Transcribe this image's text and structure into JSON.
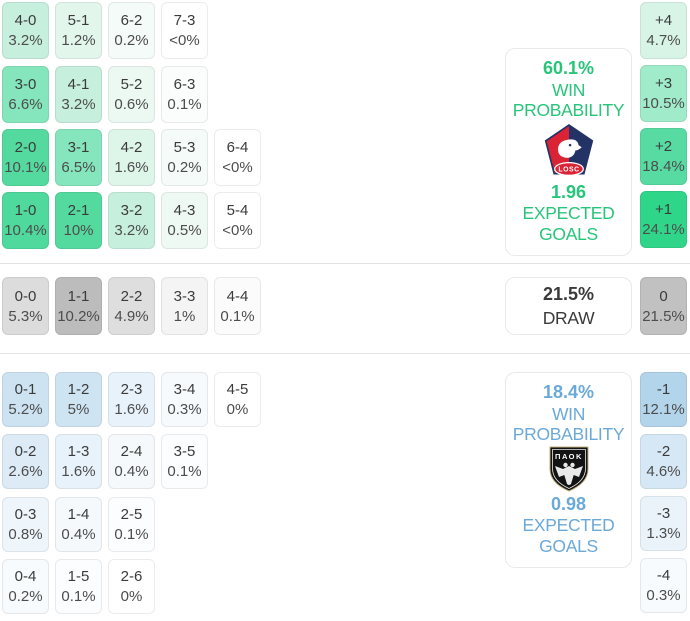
{
  "colors": {
    "home_accent": "#27c57a",
    "away_accent": "#6ba9d8",
    "draw_text": "#3a3a3a",
    "divider": "#e3e3e3",
    "home_strong_cell": "#2fd689",
    "draw_strong_cell": "#bcbcbc",
    "away_strong_cell": "#b2d5ec"
  },
  "home_grid": {
    "rows": [
      [
        {
          "t": "4-0",
          "b": "3.2%",
          "bg": "#c7efdd"
        },
        {
          "t": "5-1",
          "b": "1.2%",
          "bg": "#e2f6ec"
        },
        {
          "t": "6-2",
          "b": "0.2%",
          "bg": "#f5fbf8"
        },
        {
          "t": "7-3",
          "b": "<0%",
          "bg": "#ffffff"
        }
      ],
      [
        {
          "t": "3-0",
          "b": "6.6%",
          "bg": "#85e5bc"
        },
        {
          "t": "4-1",
          "b": "3.2%",
          "bg": "#c7efdd"
        },
        {
          "t": "5-2",
          "b": "0.6%",
          "bg": "#ecf9f3"
        },
        {
          "t": "6-3",
          "b": "0.1%",
          "bg": "#fafdfc"
        }
      ],
      [
        {
          "t": "2-0",
          "b": "10.1%",
          "bg": "#54da9f"
        },
        {
          "t": "3-1",
          "b": "6.5%",
          "bg": "#85e5bc"
        },
        {
          "t": "4-2",
          "b": "1.6%",
          "bg": "#def5ea"
        },
        {
          "t": "5-3",
          "b": "0.2%",
          "bg": "#f5fbf8"
        },
        {
          "t": "6-4",
          "b": "<0%",
          "bg": "#ffffff"
        }
      ],
      [
        {
          "t": "1-0",
          "b": "10.4%",
          "bg": "#4fd99d"
        },
        {
          "t": "2-1",
          "b": "10%",
          "bg": "#54da9f"
        },
        {
          "t": "3-2",
          "b": "3.2%",
          "bg": "#c7efdd"
        },
        {
          "t": "4-3",
          "b": "0.5%",
          "bg": "#eff9f4"
        },
        {
          "t": "5-4",
          "b": "<0%",
          "bg": "#ffffff"
        }
      ]
    ]
  },
  "draw_row": [
    {
      "t": "0-0",
      "b": "5.3%",
      "bg": "#dcdcdc"
    },
    {
      "t": "1-1",
      "b": "10.2%",
      "bg": "#bcbcbc"
    },
    {
      "t": "2-2",
      "b": "4.9%",
      "bg": "#dedede"
    },
    {
      "t": "3-3",
      "b": "1%",
      "bg": "#f4f4f4"
    },
    {
      "t": "4-4",
      "b": "0.1%",
      "bg": "#fbfbfb"
    }
  ],
  "away_grid": {
    "rows": [
      [
        {
          "t": "0-1",
          "b": "5.2%",
          "bg": "#cde3f2"
        },
        {
          "t": "1-2",
          "b": "5%",
          "bg": "#cfe4f2"
        },
        {
          "t": "2-3",
          "b": "1.6%",
          "bg": "#e8f2fa"
        },
        {
          "t": "3-4",
          "b": "0.3%",
          "bg": "#f7fafd"
        },
        {
          "t": "4-5",
          "b": "0%",
          "bg": "#ffffff"
        }
      ],
      [
        {
          "t": "0-2",
          "b": "2.6%",
          "bg": "#dcebf6"
        },
        {
          "t": "1-3",
          "b": "1.6%",
          "bg": "#e8f2fa"
        },
        {
          "t": "2-4",
          "b": "0.4%",
          "bg": "#f5f9fc"
        },
        {
          "t": "3-5",
          "b": "0.1%",
          "bg": "#fbfdfe"
        }
      ],
      [
        {
          "t": "0-3",
          "b": "0.8%",
          "bg": "#eff6fb"
        },
        {
          "t": "1-4",
          "b": "0.4%",
          "bg": "#f5f9fc"
        },
        {
          "t": "2-5",
          "b": "0.1%",
          "bg": "#fbfdfe"
        }
      ],
      [
        {
          "t": "0-4",
          "b": "0.2%",
          "bg": "#f8fbfd"
        },
        {
          "t": "1-5",
          "b": "0.1%",
          "bg": "#fbfdfe"
        },
        {
          "t": "2-6",
          "b": "0%",
          "bg": "#ffffff"
        }
      ]
    ]
  },
  "home_diffs": [
    {
      "t": "+4",
      "b": "4.7%",
      "bg": "#d8f4e7"
    },
    {
      "t": "+3",
      "b": "10.5%",
      "bg": "#9febca"
    },
    {
      "t": "+2",
      "b": "18.4%",
      "bg": "#57dba2"
    },
    {
      "t": "+1",
      "b": "24.1%",
      "bg": "#2fd689"
    }
  ],
  "draw_diffs": [
    {
      "t": "0",
      "b": "21.5%",
      "bg": "#c1c1c1"
    }
  ],
  "away_diffs": [
    {
      "t": "-1",
      "b": "12.1%",
      "bg": "#b2d5ec"
    },
    {
      "t": "-2",
      "b": "4.6%",
      "bg": "#d6e8f5"
    },
    {
      "t": "-3",
      "b": "1.3%",
      "bg": "#eaf3fa"
    },
    {
      "t": "-4",
      "b": "0.3%",
      "bg": "#f8fbfd"
    }
  ],
  "home_panel": {
    "win_pct": "60.1%",
    "win_line1": "WIN",
    "win_line2": "PROBABILITY",
    "xg": "1.96",
    "xg_line1": "EXPECTED",
    "xg_line2": "GOALS",
    "logo": "losc-lille-crest",
    "logo_text": "LOSC"
  },
  "draw_panel": {
    "pct": "21.5%",
    "label": "DRAW"
  },
  "away_panel": {
    "win_pct": "18.4%",
    "win_line1": "WIN",
    "win_line2": "PROBABILITY",
    "xg": "0.98",
    "xg_line1": "EXPECTED",
    "xg_line2": "GOALS",
    "logo": "paok-crest",
    "logo_text": "ΠΑΟΚ"
  },
  "chart_data": {
    "type": "heatmap",
    "title": "Correct score and goal-difference probability matrix",
    "legend_position": "right",
    "sections": [
      {
        "name": "home_win",
        "team_logo": "losc-lille-crest",
        "win_probability_pct": 60.1,
        "expected_goals": 1.96,
        "scores": {
          "4-0": "3.2%",
          "5-1": "1.2%",
          "6-2": "0.2%",
          "7-3": "<0%",
          "3-0": "6.6%",
          "4-1": "3.2%",
          "5-2": "0.6%",
          "6-3": "0.1%",
          "2-0": "10.1%",
          "3-1": "6.5%",
          "4-2": "1.6%",
          "5-3": "0.2%",
          "6-4": "<0%",
          "1-0": "10.4%",
          "2-1": "10%",
          "3-2": "3.2%",
          "4-3": "0.5%",
          "5-4": "<0%"
        },
        "goal_diff": {
          "+4": "4.7%",
          "+3": "10.5%",
          "+2": "18.4%",
          "+1": "24.1%"
        }
      },
      {
        "name": "draw",
        "draw_probability_pct": 21.5,
        "scores": {
          "0-0": "5.3%",
          "1-1": "10.2%",
          "2-2": "4.9%",
          "3-3": "1%",
          "4-4": "0.1%"
        },
        "goal_diff": {
          "0": "21.5%"
        }
      },
      {
        "name": "away_win",
        "team_logo": "paok-crest",
        "win_probability_pct": 18.4,
        "expected_goals": 0.98,
        "scores": {
          "0-1": "5.2%",
          "1-2": "5%",
          "2-3": "1.6%",
          "3-4": "0.3%",
          "4-5": "0%",
          "0-2": "2.6%",
          "1-3": "1.6%",
          "2-4": "0.4%",
          "3-5": "0.1%",
          "0-3": "0.8%",
          "1-4": "0.4%",
          "2-5": "0.1%",
          "0-4": "0.2%",
          "1-5": "0.1%",
          "2-6": "0%"
        },
        "goal_diff": {
          "-1": "12.1%",
          "-2": "4.6%",
          "-3": "1.3%",
          "-4": "0.3%"
        }
      }
    ]
  }
}
